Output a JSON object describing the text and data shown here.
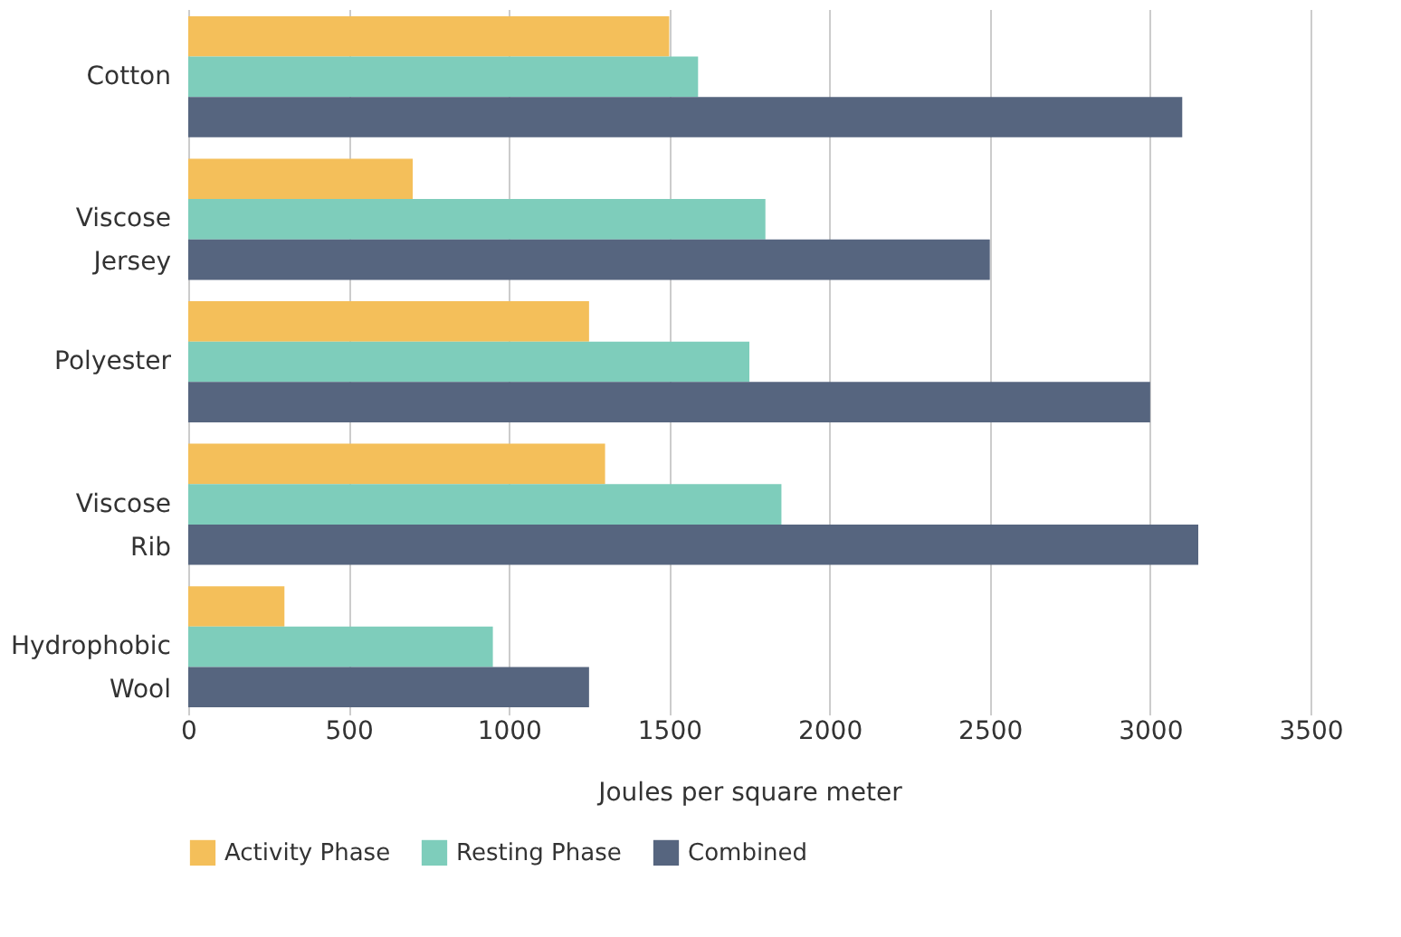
{
  "chart_data": {
    "type": "bar",
    "orientation": "horizontal",
    "xlabel": "Joules per square meter",
    "categories": [
      "Cotton",
      "Viscose Jersey",
      "Polyester",
      "Viscose Rib",
      "Hydrophobic Wool"
    ],
    "series": [
      {
        "name": "Activity Phase",
        "color": "#f4bf5a",
        "values": [
          1500,
          700,
          1250,
          1300,
          300
        ]
      },
      {
        "name": "Resting Phase",
        "color": "#7ecdbb",
        "values": [
          1590,
          1800,
          1750,
          1850,
          950
        ]
      },
      {
        "name": "Combined",
        "color": "#56657f",
        "values": [
          3100,
          2500,
          3000,
          3150,
          1250
        ]
      }
    ],
    "xlim": [
      0,
      3500
    ],
    "xticks": [
      0,
      500,
      1000,
      1500,
      2000,
      2500,
      3000,
      3500
    ],
    "grid": "x",
    "legend": "bottom"
  }
}
